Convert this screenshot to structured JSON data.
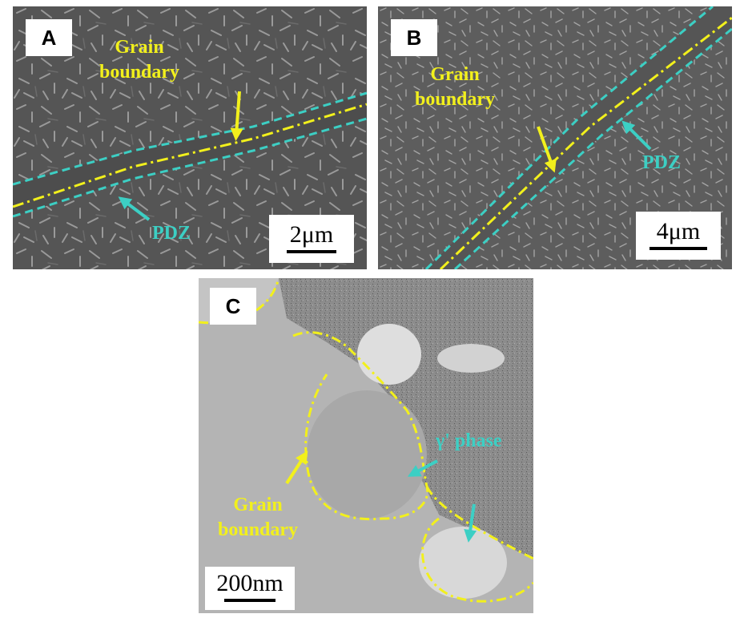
{
  "colors": {
    "yellow": "#f2f01c",
    "cyan": "#3ccfc4"
  },
  "panel_a": {
    "label": "A",
    "gb_line1": "Grain",
    "gb_line2": "boundary",
    "pdz": "PDZ",
    "scale": "2μm"
  },
  "panel_b": {
    "label": "B",
    "gb_line1": "Grain",
    "gb_line2": "boundary",
    "pdz": "PDZ",
    "scale": "4μm"
  },
  "panel_c": {
    "label": "C",
    "gamma": "γ' phase",
    "gb_line1": "Grain",
    "gb_line2": "boundary",
    "scale": "200nm"
  }
}
